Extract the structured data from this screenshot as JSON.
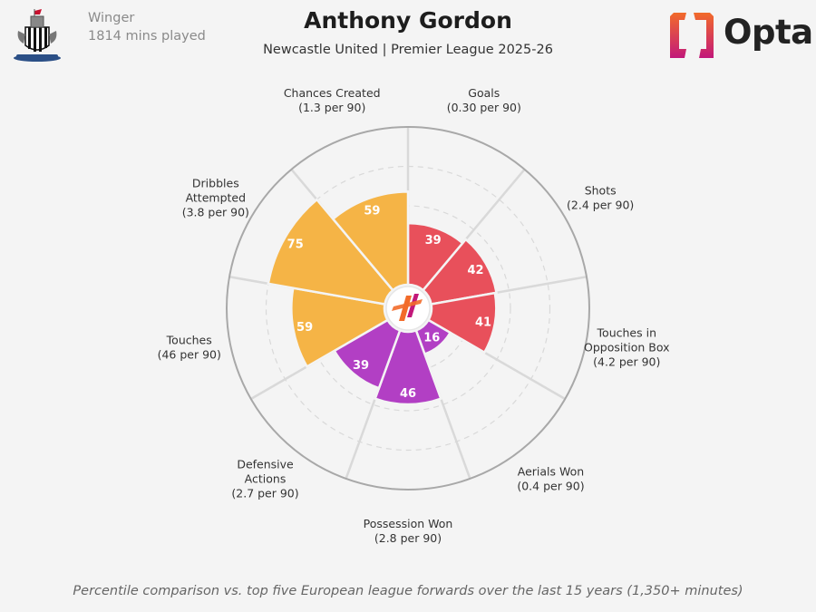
{
  "header": {
    "position": "Winger",
    "minutes": "1814 mins played",
    "player_name": "Anthony Gordon",
    "subtitle": "Newcastle United | Premier League 2025-26",
    "brand": "Opta"
  },
  "footnote": "Percentile comparison vs. top five European league forwards over the last 15 years (1,350+ minutes)",
  "colors": {
    "attacking": "#e8505b",
    "possession": "#f5b446",
    "defending": "#b23fc4",
    "ring": "#a8a8a8",
    "grid": "#d9d9d9",
    "brand_orange": "#f26b2a",
    "brand_magenta": "#c2187a"
  },
  "chart_data": {
    "type": "radar",
    "scale": [
      0,
      100
    ],
    "title": "Anthony Gordon",
    "metrics": [
      {
        "name": "Goals",
        "label_lines": [
          "Goals",
          "(0.30 per 90)"
        ],
        "value": 39,
        "group": "attacking"
      },
      {
        "name": "Shots",
        "label_lines": [
          "Shots",
          "(2.4 per 90)"
        ],
        "value": 42,
        "group": "attacking"
      },
      {
        "name": "Touches in Opposition Box",
        "label_lines": [
          "Touches in",
          "Opposition Box",
          "(4.2 per 90)"
        ],
        "value": 41,
        "group": "attacking"
      },
      {
        "name": "Aerials Won",
        "label_lines": [
          "Aerials Won",
          "(0.4 per 90)"
        ],
        "value": 16,
        "group": "defending"
      },
      {
        "name": "Possession Won",
        "label_lines": [
          "Possession Won",
          "(2.8 per 90)"
        ],
        "value": 46,
        "group": "defending"
      },
      {
        "name": "Defensive Actions",
        "label_lines": [
          "Defensive",
          "Actions",
          "(2.7 per 90)"
        ],
        "value": 39,
        "group": "defending"
      },
      {
        "name": "Touches",
        "label_lines": [
          "Touches",
          "(46 per 90)"
        ],
        "value": 59,
        "group": "possession"
      },
      {
        "name": "Dribbles Attempted",
        "label_lines": [
          "Dribbles",
          "Attempted",
          "(3.8 per 90)"
        ],
        "value": 75,
        "group": "possession"
      },
      {
        "name": "Chances Created",
        "label_lines": [
          "Chances Created",
          "(1.3 per 90)"
        ],
        "value": 59,
        "group": "possession"
      }
    ]
  }
}
